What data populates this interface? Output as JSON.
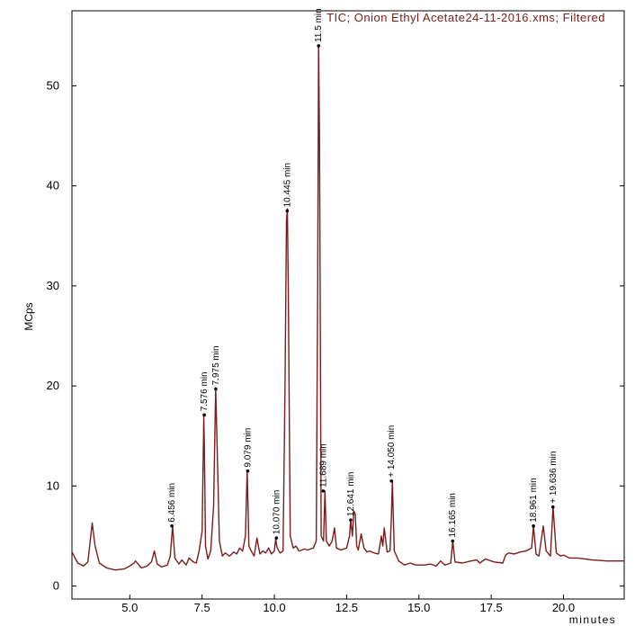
{
  "chart_data": {
    "type": "line",
    "title": "TIC;  Onion Ethyl Acetate24-11-2016.xms;  Filtered",
    "xlabel": "minutes",
    "ylabel": "MCps",
    "xlim": [
      3.0,
      22.1
    ],
    "ylim": [
      -1.3,
      57.5
    ],
    "x_ticks": [
      5.0,
      7.5,
      10.0,
      12.5,
      15.0,
      17.5,
      20.0
    ],
    "x_tick_labels": [
      "5.0",
      "7.5",
      "10.0",
      "12.5",
      "15.0",
      "17.5",
      "20.0"
    ],
    "y_ticks": [
      0,
      10,
      20,
      30,
      40,
      50
    ],
    "y_tick_labels": [
      "0",
      "10",
      "20",
      "30",
      "40",
      "50"
    ],
    "grid": false,
    "colors": {
      "trace": "#7b1c1c",
      "title": "#7b1c1c",
      "axis": "#000000"
    },
    "series": [
      {
        "x": [
          3.0,
          3.2,
          3.4,
          3.55,
          3.7,
          3.8,
          3.95,
          4.2,
          4.5,
          4.8,
          5.0,
          5.15,
          5.2,
          5.4,
          5.6,
          5.75,
          5.85,
          5.95,
          6.1,
          6.3,
          6.4,
          6.48,
          6.56,
          6.7,
          6.8,
          6.95,
          7.05,
          7.2,
          7.3,
          7.4,
          7.5,
          7.56,
          7.58,
          7.62,
          7.7,
          7.8,
          7.9,
          7.97,
          8.02,
          8.1,
          8.2,
          8.3,
          8.45,
          8.6,
          8.7,
          8.8,
          8.9,
          9.0,
          9.06,
          9.08,
          9.12,
          9.2,
          9.3,
          9.4,
          9.45,
          9.5,
          9.6,
          9.7,
          9.8,
          9.9,
          10.0,
          10.05,
          10.07,
          10.1,
          10.2,
          10.3,
          10.37,
          10.42,
          10.45,
          10.48,
          10.55,
          10.65,
          10.75,
          10.85,
          10.95,
          11.05,
          11.15,
          11.25,
          11.35,
          11.45,
          11.5,
          11.53,
          11.56,
          11.62,
          11.7,
          11.75,
          11.8,
          11.9,
          12.0,
          12.08,
          12.15,
          12.3,
          12.5,
          12.6,
          12.64,
          12.7,
          12.75,
          12.8,
          12.85,
          12.9,
          13.0,
          13.1,
          13.2,
          13.3,
          13.45,
          13.6,
          13.7,
          13.75,
          13.8,
          13.9,
          14.0,
          14.05,
          14.08,
          14.15,
          14.3,
          14.5,
          14.7,
          14.9,
          15.2,
          15.4,
          15.6,
          15.75,
          15.9,
          16.1,
          16.17,
          16.25,
          16.5,
          16.8,
          17.0,
          17.1,
          17.3,
          17.6,
          17.9,
          18.0,
          18.1,
          18.3,
          18.5,
          18.7,
          18.9,
          18.96,
          19.05,
          19.15,
          19.3,
          19.4,
          19.55,
          19.64,
          19.75,
          19.9,
          20.0,
          20.2,
          20.5,
          21.0,
          21.5,
          22.1
        ],
        "y": [
          3.4,
          2.3,
          2.0,
          2.4,
          6.3,
          4.0,
          2.3,
          1.8,
          1.6,
          1.7,
          2.0,
          2.3,
          2.5,
          1.8,
          2.0,
          2.4,
          3.5,
          2.2,
          1.9,
          2.1,
          3.0,
          6.0,
          2.8,
          2.2,
          2.6,
          2.1,
          2.8,
          2.4,
          2.3,
          3.5,
          5.5,
          17.0,
          14.0,
          4.0,
          2.7,
          3.5,
          8.0,
          19.8,
          14.0,
          4.5,
          3.0,
          3.3,
          3.0,
          3.4,
          3.2,
          3.8,
          3.5,
          5.0,
          11.5,
          9.0,
          4.0,
          3.5,
          3.0,
          4.8,
          4.0,
          3.2,
          3.5,
          3.3,
          3.8,
          3.2,
          3.5,
          4.8,
          4.2,
          3.8,
          3.3,
          3.5,
          20.0,
          36.5,
          37.7,
          30.0,
          5.0,
          3.8,
          4.0,
          3.5,
          3.6,
          3.7,
          3.6,
          3.7,
          3.8,
          4.5,
          30.0,
          54.0,
          45.0,
          5.0,
          4.5,
          9.5,
          4.5,
          4.0,
          4.5,
          5.8,
          3.8,
          3.6,
          3.8,
          5.0,
          6.6,
          5.0,
          7.5,
          7.2,
          4.0,
          3.6,
          5.2,
          3.8,
          3.4,
          3.5,
          3.3,
          3.2,
          5.0,
          4.0,
          5.8,
          3.4,
          3.5,
          7.0,
          10.5,
          3.5,
          2.5,
          2.1,
          2.3,
          2.1,
          2.1,
          2.2,
          2.0,
          2.5,
          2.1,
          2.3,
          4.5,
          2.4,
          2.3,
          2.5,
          2.6,
          2.3,
          2.7,
          2.4,
          2.3,
          3.1,
          3.3,
          3.2,
          3.4,
          3.5,
          3.8,
          6.0,
          3.2,
          3.0,
          6.0,
          3.5,
          3.0,
          7.9,
          3.3,
          3.0,
          3.1,
          2.8,
          2.8,
          2.6,
          2.5,
          2.5
        ]
      }
    ],
    "annotations": [
      {
        "label": "6.456 min",
        "x": 6.456,
        "y": 6.0
      },
      {
        "label": "7.576 min",
        "x": 7.576,
        "y": 17.1
      },
      {
        "label": "7.975 min",
        "x": 7.975,
        "y": 19.7
      },
      {
        "label": "9.079 min",
        "x": 9.079,
        "y": 11.5
      },
      {
        "label": "10.070 min",
        "x": 10.07,
        "y": 4.8
      },
      {
        "label": "10.445 min",
        "x": 10.445,
        "y": 37.5
      },
      {
        "label": "11.5 min",
        "x": 11.53,
        "y": 54.0
      },
      {
        "label": "11.689 min",
        "x": 11.689,
        "y": 9.5
      },
      {
        "label": "12.641 min",
        "x": 12.641,
        "y": 6.6
      },
      {
        "label": "+ 14.050 min",
        "x": 14.05,
        "y": 10.5
      },
      {
        "label": "16.165 min",
        "x": 16.165,
        "y": 4.5
      },
      {
        "label": "18.961 min",
        "x": 18.961,
        "y": 6.0
      },
      {
        "label": "+ 19.636 min",
        "x": 19.636,
        "y": 7.9
      }
    ]
  }
}
